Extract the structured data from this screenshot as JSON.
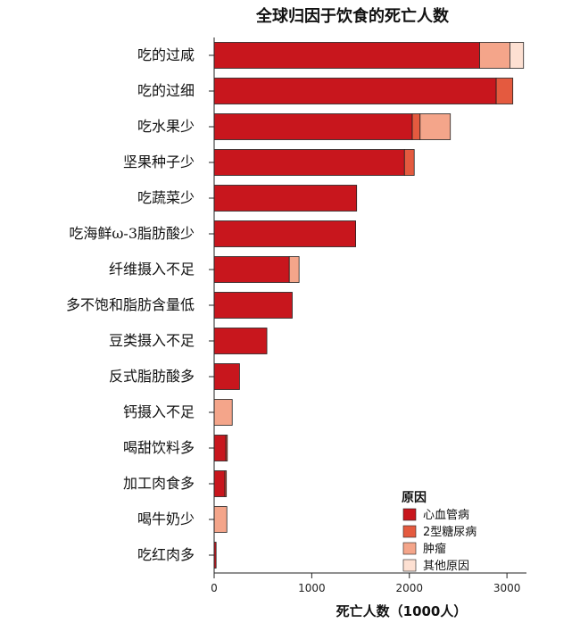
{
  "chart_data": {
    "type": "bar",
    "orientation": "horizontal",
    "stacked": true,
    "title": "全球归因于饮食的死亡人数",
    "xlabel": "死亡人数（1000人）",
    "xlim": [
      0,
      3200
    ],
    "xticks": [
      0,
      1000,
      2000,
      3000
    ],
    "categories": [
      "吃的过咸",
      "吃的过细",
      "吃水果少",
      "坚果种子少",
      "吃蔬菜少",
      "吃海鲜ω-3脂肪酸少",
      "纤维摄入不足",
      "多不饱和脂肪含量低",
      "豆类摄入不足",
      "反式脂肪酸多",
      "钙摄入不足",
      "喝甜饮料多",
      "加工肉食多",
      "喝牛奶少",
      "吃红肉多"
    ],
    "series": [
      {
        "name": "心血管病",
        "color": "#c8161d",
        "values": [
          2720,
          2890,
          2030,
          1950,
          1460,
          1450,
          770,
          800,
          540,
          260,
          0,
          120,
          110,
          0,
          20
        ]
      },
      {
        "name": "2型糖尿病",
        "color": "#e45a3f",
        "values": [
          0,
          170,
          80,
          100,
          0,
          0,
          0,
          0,
          0,
          0,
          0,
          15,
          15,
          0,
          0
        ]
      },
      {
        "name": "肿瘤",
        "color": "#f4a58a",
        "values": [
          310,
          0,
          310,
          0,
          0,
          0,
          100,
          0,
          0,
          0,
          185,
          0,
          0,
          130,
          0
        ]
      },
      {
        "name": "其他原因",
        "color": "#fde0d2",
        "values": [
          140,
          0,
          0,
          0,
          0,
          0,
          0,
          0,
          0,
          0,
          0,
          0,
          0,
          0,
          0
        ]
      }
    ],
    "legend": {
      "title": "原因",
      "position": "bottom-right"
    },
    "grid": false
  }
}
